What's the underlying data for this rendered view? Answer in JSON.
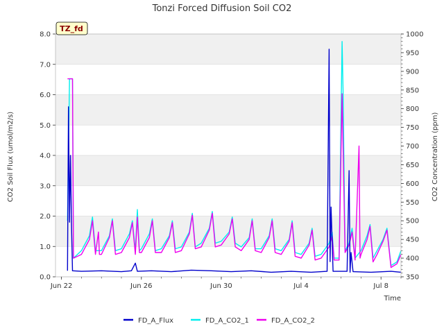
{
  "chart_data": {
    "type": "line",
    "title": "Tonzi Forced Diffusion Soil CO2",
    "xlabel": "Time",
    "ylabel_left": "CO2 Soil Flux (umol/m2/s)",
    "ylabel_right": "CO2 Concentration (ppm)",
    "badge": "TZ_fd",
    "x_ticks": [
      {
        "label": "Jun 22",
        "day": 0
      },
      {
        "label": "Jun 26",
        "day": 4
      },
      {
        "label": "Jun 30",
        "day": 8
      },
      {
        "label": "Jul 4",
        "day": 12
      },
      {
        "label": "Jul 8",
        "day": 16
      }
    ],
    "x_range_days": [
      -0.3,
      17.0
    ],
    "ylim_left": [
      0,
      8
    ],
    "yticks_left": [
      "0.0",
      "1.0",
      "2.0",
      "3.0",
      "4.0",
      "5.0",
      "6.0",
      "7.0",
      "8.0"
    ],
    "ylim_right": [
      350,
      1000
    ],
    "yticks_right": [
      "350",
      "400",
      "450",
      "500",
      "550",
      "600",
      "650",
      "700",
      "750",
      "800",
      "850",
      "900",
      "950",
      "1000"
    ],
    "band_shading": "alternating grey bands on left axis",
    "series": [
      {
        "name": "FD_A_Flux",
        "axis": "left",
        "color": "#0000cc",
        "points": [
          [
            0.3,
            0.2
          ],
          [
            0.35,
            5.6
          ],
          [
            0.4,
            1.8
          ],
          [
            0.45,
            4.0
          ],
          [
            0.5,
            1.8
          ],
          [
            0.55,
            0.2
          ],
          [
            1,
            0.18
          ],
          [
            2,
            0.2
          ],
          [
            3,
            0.17
          ],
          [
            3.5,
            0.2
          ],
          [
            3.7,
            0.45
          ],
          [
            3.8,
            0.18
          ],
          [
            4.5,
            0.2
          ],
          [
            5.5,
            0.17
          ],
          [
            6.5,
            0.22
          ],
          [
            7.5,
            0.2
          ],
          [
            8.5,
            0.17
          ],
          [
            9.5,
            0.2
          ],
          [
            10.5,
            0.15
          ],
          [
            11.5,
            0.18
          ],
          [
            12.5,
            0.15
          ],
          [
            13.3,
            0.18
          ],
          [
            13.4,
            7.5
          ],
          [
            13.45,
            0.5
          ],
          [
            13.5,
            2.3
          ],
          [
            13.6,
            0.18
          ],
          [
            14.3,
            0.18
          ],
          [
            14.4,
            3.5
          ],
          [
            14.45,
            0.15
          ],
          [
            14.5,
            0.8
          ],
          [
            14.6,
            0.17
          ],
          [
            15.5,
            0.15
          ],
          [
            16.5,
            0.18
          ],
          [
            17,
            0.15
          ]
        ]
      },
      {
        "name": "FD_A_CO2_1",
        "axis": "right",
        "color": "#00eeee",
        "points": [
          [
            0.3,
            500
          ],
          [
            0.4,
            880
          ],
          [
            0.55,
            880
          ],
          [
            0.6,
            400
          ],
          [
            1.0,
            420
          ],
          [
            1.4,
            460
          ],
          [
            1.55,
            510
          ],
          [
            1.7,
            420
          ],
          [
            2.0,
            420
          ],
          [
            2.4,
            460
          ],
          [
            2.55,
            505
          ],
          [
            2.7,
            420
          ],
          [
            3.0,
            425
          ],
          [
            3.4,
            465
          ],
          [
            3.55,
            500
          ],
          [
            3.7,
            420
          ],
          [
            3.8,
            530
          ],
          [
            3.9,
            420
          ],
          [
            4.0,
            425
          ],
          [
            4.4,
            465
          ],
          [
            4.55,
            505
          ],
          [
            4.7,
            420
          ],
          [
            5.0,
            425
          ],
          [
            5.4,
            460
          ],
          [
            5.55,
            500
          ],
          [
            5.7,
            425
          ],
          [
            6.0,
            430
          ],
          [
            6.4,
            470
          ],
          [
            6.55,
            520
          ],
          [
            6.7,
            430
          ],
          [
            7.0,
            440
          ],
          [
            7.4,
            480
          ],
          [
            7.55,
            525
          ],
          [
            7.7,
            440
          ],
          [
            8.0,
            445
          ],
          [
            8.4,
            470
          ],
          [
            8.55,
            510
          ],
          [
            8.7,
            440
          ],
          [
            9.0,
            430
          ],
          [
            9.4,
            455
          ],
          [
            9.55,
            505
          ],
          [
            9.7,
            425
          ],
          [
            10.0,
            425
          ],
          [
            10.4,
            460
          ],
          [
            10.55,
            505
          ],
          [
            10.7,
            425
          ],
          [
            11.0,
            420
          ],
          [
            11.4,
            450
          ],
          [
            11.55,
            500
          ],
          [
            11.7,
            415
          ],
          [
            12.0,
            410
          ],
          [
            12.4,
            440
          ],
          [
            12.55,
            480
          ],
          [
            12.7,
            405
          ],
          [
            13.0,
            410
          ],
          [
            13.4,
            440
          ],
          [
            13.55,
            470
          ],
          [
            13.65,
            400
          ],
          [
            13.9,
            400
          ],
          [
            14.05,
            980
          ],
          [
            14.1,
            850
          ],
          [
            14.2,
            420
          ],
          [
            14.4,
            440
          ],
          [
            14.55,
            480
          ],
          [
            14.7,
            400
          ],
          [
            15.0,
            420
          ],
          [
            15.3,
            460
          ],
          [
            15.45,
            490
          ],
          [
            15.6,
            400
          ],
          [
            15.8,
            420
          ],
          [
            16.1,
            450
          ],
          [
            16.3,
            480
          ],
          [
            16.5,
            380
          ],
          [
            16.8,
            390
          ],
          [
            17.0,
            420
          ]
        ]
      },
      {
        "name": "FD_A_CO2_2",
        "axis": "right",
        "color": "#ee00ee",
        "points": [
          [
            0.3,
            880
          ],
          [
            0.55,
            880
          ],
          [
            0.6,
            400
          ],
          [
            1.0,
            410
          ],
          [
            1.4,
            450
          ],
          [
            1.55,
            500
          ],
          [
            1.7,
            410
          ],
          [
            1.85,
            470
          ],
          [
            1.9,
            410
          ],
          [
            2.0,
            410
          ],
          [
            2.4,
            455
          ],
          [
            2.55,
            500
          ],
          [
            2.7,
            410
          ],
          [
            3.0,
            415
          ],
          [
            3.4,
            455
          ],
          [
            3.55,
            495
          ],
          [
            3.7,
            410
          ],
          [
            3.8,
            510
          ],
          [
            3.9,
            415
          ],
          [
            4.0,
            415
          ],
          [
            4.4,
            455
          ],
          [
            4.55,
            500
          ],
          [
            4.7,
            415
          ],
          [
            5.0,
            415
          ],
          [
            5.4,
            455
          ],
          [
            5.55,
            495
          ],
          [
            5.7,
            415
          ],
          [
            6.0,
            420
          ],
          [
            6.4,
            465
          ],
          [
            6.55,
            515
          ],
          [
            6.7,
            425
          ],
          [
            7.0,
            430
          ],
          [
            7.4,
            475
          ],
          [
            7.55,
            520
          ],
          [
            7.7,
            430
          ],
          [
            8.0,
            435
          ],
          [
            8.4,
            465
          ],
          [
            8.55,
            505
          ],
          [
            8.7,
            430
          ],
          [
            9.0,
            420
          ],
          [
            9.4,
            450
          ],
          [
            9.55,
            500
          ],
          [
            9.7,
            420
          ],
          [
            10.0,
            415
          ],
          [
            10.4,
            455
          ],
          [
            10.55,
            500
          ],
          [
            10.7,
            415
          ],
          [
            11.0,
            410
          ],
          [
            11.4,
            445
          ],
          [
            11.55,
            495
          ],
          [
            11.7,
            405
          ],
          [
            12.0,
            400
          ],
          [
            12.4,
            435
          ],
          [
            12.55,
            475
          ],
          [
            12.7,
            395
          ],
          [
            13.0,
            400
          ],
          [
            13.4,
            430
          ],
          [
            13.55,
            460
          ],
          [
            13.65,
            395
          ],
          [
            13.9,
            395
          ],
          [
            14.05,
            840
          ],
          [
            14.1,
            700
          ],
          [
            14.2,
            415
          ],
          [
            14.4,
            435
          ],
          [
            14.55,
            470
          ],
          [
            14.7,
            395
          ],
          [
            14.9,
            700
          ],
          [
            14.95,
            400
          ],
          [
            15.0,
            410
          ],
          [
            15.3,
            450
          ],
          [
            15.45,
            485
          ],
          [
            15.6,
            390
          ],
          [
            15.8,
            410
          ],
          [
            16.1,
            445
          ],
          [
            16.3,
            475
          ],
          [
            16.5,
            375
          ],
          [
            16.8,
            385
          ],
          [
            17.0,
            410
          ]
        ]
      }
    ]
  }
}
